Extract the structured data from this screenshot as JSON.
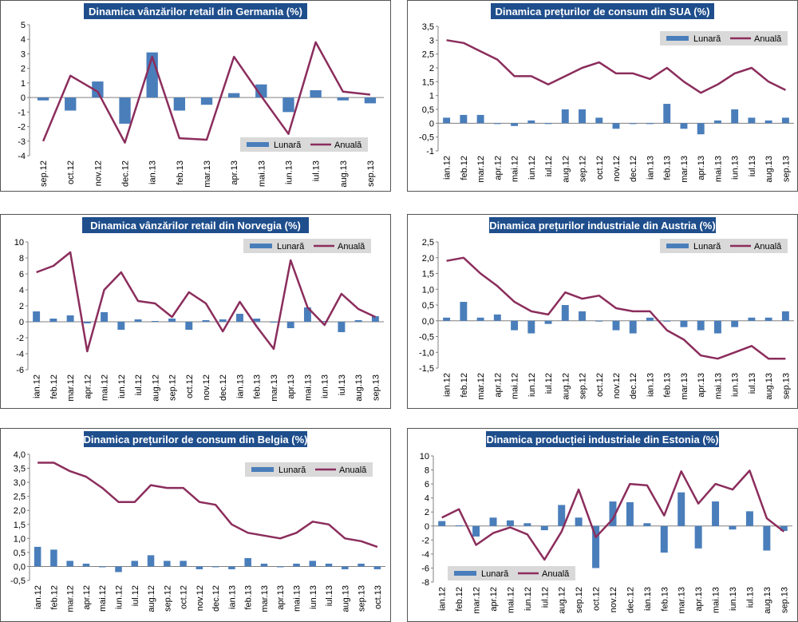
{
  "charts": [
    {
      "type": "bar+line",
      "title": "Dinamica vânzărilor retail din Germania (%)",
      "legend": {
        "monthly": "Lunară",
        "annual": "Anuală",
        "position": "bottom-right"
      },
      "categories": [
        "sep.12",
        "oct.12",
        "nov.12",
        "dec.12",
        "ian.13",
        "feb.13",
        "mar.13",
        "apr.13",
        "mai.13",
        "iun.13",
        "iul.13",
        "aug.13",
        "sep.13"
      ],
      "yticks": [
        "5",
        "4",
        "3",
        "2",
        "1",
        "0",
        "-1",
        "-2",
        "-3",
        "-4"
      ],
      "ylim": [
        -4,
        5
      ],
      "series": [
        {
          "name": "Lunară",
          "kind": "bar",
          "values": [
            -0.2,
            -0.9,
            1.1,
            -1.8,
            3.1,
            -0.9,
            -0.5,
            0.3,
            0.9,
            -1.0,
            0.5,
            -0.2,
            -0.4
          ]
        },
        {
          "name": "Anuală",
          "kind": "line",
          "values": [
            -3.0,
            1.5,
            0.4,
            -3.1,
            2.8,
            -2.8,
            -2.9,
            2.8,
            0.1,
            -2.5,
            3.8,
            0.4,
            0.2
          ]
        }
      ]
    },
    {
      "type": "bar+line",
      "title": "Dinamica prețurilor de consum din SUA (%)",
      "legend": {
        "monthly": "Lunară",
        "annual": "Anuală",
        "position": "top-right"
      },
      "categories": [
        "ian.12",
        "feb.12",
        "mar.12",
        "apr.12",
        "mai.12",
        "iun.12",
        "iul.12",
        "aug.12",
        "sep.12",
        "oct.12",
        "nov.12",
        "dec.12",
        "ian.13",
        "feb.13",
        "mar.13",
        "apr.13",
        "mai.13",
        "iun.13",
        "iul.13",
        "aug.13",
        "sep.13"
      ],
      "yticks": [
        "3,5",
        "3",
        "2,5",
        "2",
        "1,5",
        "1",
        "0,5",
        "0",
        "-0,5",
        "-1"
      ],
      "ylim": [
        -1,
        3.5
      ],
      "series": [
        {
          "name": "Lunară",
          "kind": "bar",
          "values": [
            0.2,
            0.3,
            0.3,
            0.0,
            -0.1,
            0.1,
            0.0,
            0.5,
            0.5,
            0.2,
            -0.2,
            0.0,
            0.0,
            0.7,
            -0.2,
            -0.4,
            0.1,
            0.5,
            0.2,
            0.1,
            0.2
          ]
        },
        {
          "name": "Anuală",
          "kind": "line",
          "values": [
            3.0,
            2.9,
            2.6,
            2.3,
            1.7,
            1.7,
            1.4,
            1.7,
            2.0,
            2.2,
            1.8,
            1.8,
            1.6,
            2.0,
            1.5,
            1.1,
            1.4,
            1.8,
            2.0,
            1.5,
            1.2
          ]
        }
      ]
    },
    {
      "type": "bar+line",
      "title": "Dinamica vânzărilor retail din Norvegia (%)",
      "legend": {
        "monthly": "Lunară",
        "annual": "Anuală",
        "position": "top-right"
      },
      "categories": [
        "ian.12",
        "feb.12",
        "mar.12",
        "apr.12",
        "mai.12",
        "iun.12",
        "iul.12",
        "aug.12",
        "sep.12",
        "oct.12",
        "nov.12",
        "dec.12",
        "ian.13",
        "feb.13",
        "mar.13",
        "apr.13",
        "mai.13",
        "iun.13",
        "iul.13",
        "aug.13",
        "sep.13"
      ],
      "yticks": [
        "10",
        "8",
        "6",
        "4",
        "2",
        "0",
        "-2",
        "-4",
        "-6"
      ],
      "ylim": [
        -6,
        10
      ],
      "series": [
        {
          "name": "Lunară",
          "kind": "bar",
          "values": [
            1.3,
            0.4,
            0.8,
            -0.2,
            1.2,
            -1.0,
            0.3,
            0.1,
            0.4,
            -1.0,
            0.2,
            0.3,
            1.0,
            0.4,
            0.0,
            -0.8,
            1.8,
            0.1,
            -1.3,
            0.2,
            0.7
          ]
        },
        {
          "name": "Anuală",
          "kind": "line",
          "values": [
            6.2,
            7.0,
            8.7,
            -3.7,
            4.0,
            6.2,
            2.6,
            2.3,
            0.6,
            3.7,
            2.3,
            -1.2,
            2.5,
            -0.6,
            -3.4,
            7.7,
            1.8,
            -0.4,
            3.5,
            1.6,
            0.6
          ]
        }
      ]
    },
    {
      "type": "bar+line",
      "title": "Dinamica prețurilor industriale din Austria (%)",
      "legend": {
        "monthly": "Lunară",
        "annual": "Anuală",
        "position": "top-right"
      },
      "categories": [
        "ian.12",
        "feb.12",
        "mar.12",
        "apr.12",
        "mai.12",
        "iun.12",
        "iul.12",
        "aug.12",
        "sep.12",
        "oct.12",
        "nov.12",
        "dec.12",
        "ian.13",
        "feb.13",
        "mar.13",
        "apr.13",
        "mai.13",
        "iun.13",
        "iul.13",
        "aug.13",
        "sep.13"
      ],
      "yticks": [
        "2,5",
        "2,0",
        "1,5",
        "1,0",
        "0,5",
        "0,0",
        "-0,5",
        "-1,0",
        "-1,5"
      ],
      "ylim": [
        -1.5,
        2.5
      ],
      "series": [
        {
          "name": "Lunară",
          "kind": "bar",
          "values": [
            0.1,
            0.6,
            0.1,
            0.2,
            -0.3,
            -0.4,
            -0.1,
            0.5,
            0.3,
            0.0,
            -0.3,
            -0.4,
            0.1,
            0.0,
            -0.2,
            -0.3,
            -0.4,
            -0.2,
            0.1,
            0.1,
            0.3
          ]
        },
        {
          "name": "Anuală",
          "kind": "line",
          "values": [
            1.9,
            2.0,
            1.5,
            1.1,
            0.6,
            0.3,
            0.2,
            0.9,
            0.7,
            0.8,
            0.4,
            0.3,
            0.3,
            -0.3,
            -0.6,
            -1.1,
            -1.2,
            -1.0,
            -0.8,
            -1.2,
            -1.2
          ]
        }
      ]
    },
    {
      "type": "bar+line",
      "title": "Dinamica prețurilor de consum din Belgia (%)",
      "legend": {
        "monthly": "Lunară",
        "annual": "Anuală",
        "position": "top-right"
      },
      "categories": [
        "ian.12",
        "feb.12",
        "mar.12",
        "apr.12",
        "mai.12",
        "iun.12",
        "iul.12",
        "aug.12",
        "sep.12",
        "oct.12",
        "nov.12",
        "dec.12",
        "ian.13",
        "feb.13",
        "mar.13",
        "apr.13",
        "mai.13",
        "iun.13",
        "iul.13",
        "aug.13",
        "sep.13",
        "oct.13"
      ],
      "yticks": [
        "4,0",
        "3,5",
        "3,0",
        "2,5",
        "2,0",
        "1,5",
        "1,0",
        "0,5",
        "0,0",
        "-0,5"
      ],
      "ylim": [
        -0.5,
        4.0
      ],
      "series": [
        {
          "name": "Lunară",
          "kind": "bar",
          "values": [
            0.7,
            0.6,
            0.2,
            0.1,
            0.0,
            -0.2,
            0.2,
            0.4,
            0.2,
            0.2,
            -0.1,
            0.0,
            -0.1,
            0.3,
            0.1,
            0.0,
            0.1,
            0.2,
            0.1,
            -0.1,
            0.1,
            -0.1
          ]
        },
        {
          "name": "Anuală",
          "kind": "line",
          "values": [
            3.7,
            3.7,
            3.4,
            3.2,
            2.8,
            2.3,
            2.3,
            2.9,
            2.8,
            2.8,
            2.3,
            2.2,
            1.5,
            1.2,
            1.1,
            1.0,
            1.2,
            1.6,
            1.5,
            1.0,
            0.9,
            0.7
          ]
        }
      ]
    },
    {
      "type": "bar+line",
      "title": "Dinamica producției industriale din Estonia (%)",
      "legend": {
        "monthly": "Lunară",
        "annual": "Anuală",
        "position": "bottom-left"
      },
      "categories": [
        "ian.12",
        "feb.12",
        "mar.12",
        "apr.12",
        "mai.12",
        "iun.12",
        "iul.12",
        "aug.12",
        "sep.12",
        "oct.12",
        "nov.12",
        "dec.12",
        "ian.13",
        "feb.13",
        "mar.13",
        "apr.13",
        "mai.13",
        "iun.13",
        "iul.13",
        "aug.13",
        "sep.13"
      ],
      "yticks": [
        "10",
        "8",
        "6",
        "4",
        "2",
        "0",
        "-2",
        "-4",
        "-6",
        "-8"
      ],
      "ylim": [
        -8,
        10
      ],
      "series": [
        {
          "name": "Lunară",
          "kind": "bar",
          "values": [
            0.7,
            0.1,
            -1.5,
            1.2,
            0.8,
            0.4,
            -0.6,
            3.0,
            1.2,
            -6.0,
            3.5,
            3.4,
            0.4,
            -3.8,
            4.8,
            -3.2,
            3.5,
            -0.5,
            2.1,
            -3.5,
            -0.7
          ]
        },
        {
          "name": "Anuală",
          "kind": "line",
          "values": [
            1.2,
            2.4,
            -2.7,
            -1.0,
            -0.2,
            -1.2,
            -4.8,
            -0.8,
            5.2,
            -1.6,
            1.0,
            6.0,
            5.8,
            1.5,
            7.8,
            3.2,
            6.0,
            5.2,
            7.9,
            1.1,
            -0.8
          ]
        }
      ]
    }
  ],
  "colors": {
    "bar": "#4a7ebb",
    "line": "#8b2d5c",
    "title_bg": "#1f4e8c",
    "title_text": "#ffffff",
    "legend_bg": "#d9d9d9"
  }
}
